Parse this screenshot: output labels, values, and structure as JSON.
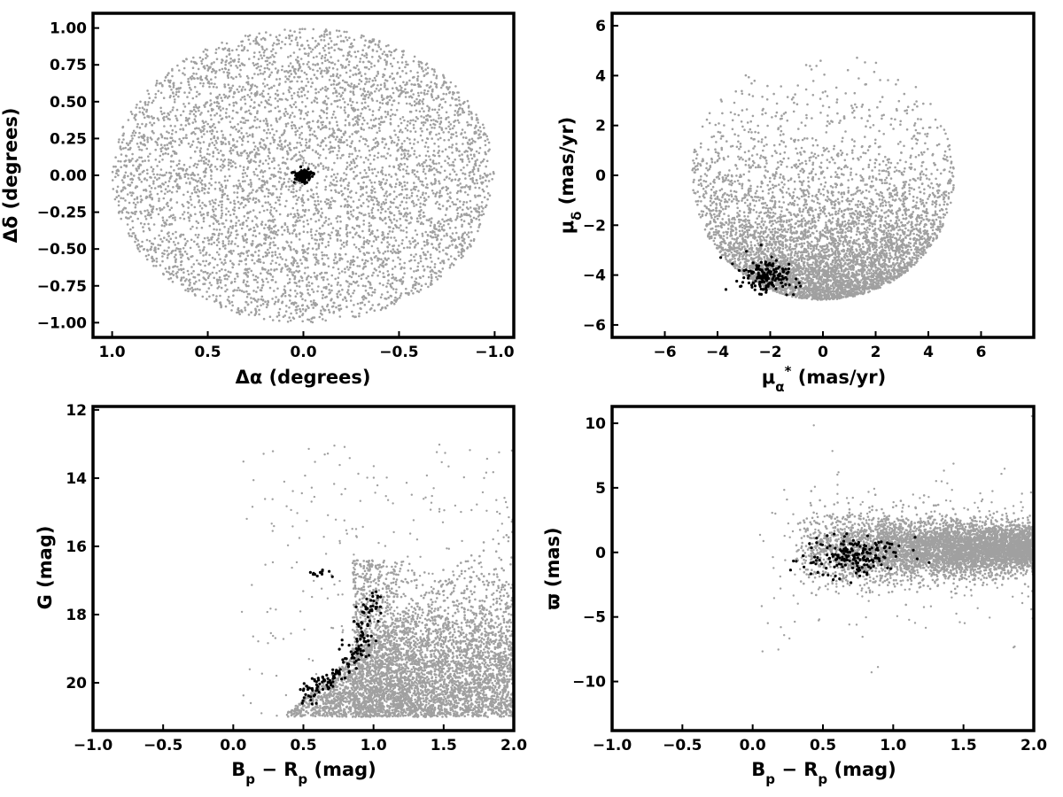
{
  "chart_data": [
    {
      "id": "sky",
      "type": "scatter",
      "xlabel": "Δα (degrees)",
      "ylabel": "Δδ (degrees)",
      "xlim": [
        1.1,
        -1.1
      ],
      "ylim": [
        -1.1,
        1.1
      ],
      "x_reversed": true,
      "xticks": [
        1.0,
        0.5,
        0.0,
        -0.5,
        -1.0
      ],
      "xtick_labels": [
        "1.0",
        "0.5",
        "0.0",
        "−0.5",
        "−1.0"
      ],
      "yticks": [
        1.0,
        0.75,
        0.5,
        0.25,
        0.0,
        -0.25,
        -0.5,
        -0.75,
        -1.0
      ],
      "ytick_labels": [
        "1.00",
        "0.75",
        "0.50",
        "0.25",
        "0.00",
        "−0.25",
        "−0.50",
        "−0.75",
        "−1.00"
      ],
      "series": [
        {
          "role": "field stars",
          "color": "#a0a0a0",
          "distribution": "uniform disk",
          "center": [
            0.0,
            0.0
          ],
          "radius": 1.0
        },
        {
          "role": "members",
          "color": "#000000",
          "distribution": "compact clump",
          "center": [
            0.0,
            0.0
          ],
          "spread": [
            0.02,
            0.02
          ]
        }
      ]
    },
    {
      "id": "proper-motion",
      "type": "scatter",
      "xlabel": "μ*α (mas/yr)",
      "ylabel": "μδ (mas/yr)",
      "xlim": [
        -8,
        8
      ],
      "ylim": [
        -6.5,
        6.5
      ],
      "xticks": [
        -6,
        -4,
        -2,
        0,
        2,
        4,
        6
      ],
      "xtick_labels": [
        "−6",
        "−4",
        "−2",
        "0",
        "2",
        "4",
        "6"
      ],
      "yticks": [
        6,
        4,
        2,
        0,
        -2,
        -4,
        -6
      ],
      "ytick_labels": [
        "6",
        "4",
        "2",
        "0",
        "−2",
        "−4",
        "−6"
      ],
      "series": [
        {
          "role": "field stars",
          "color": "#a0a0a0",
          "distribution": "disk, concentrated near bottom",
          "center": [
            0.0,
            0.0
          ],
          "radius": 5.0,
          "ymin": -5.0
        },
        {
          "role": "members",
          "color": "#000000",
          "distribution": "clump",
          "center": [
            -2.1,
            -4.0
          ],
          "spread": [
            0.55,
            0.35
          ]
        }
      ]
    },
    {
      "id": "cmd",
      "type": "scatter",
      "xlabel": "Bp − Rp (mag)",
      "ylabel": "G (mag)",
      "xlim": [
        -1.0,
        2.0
      ],
      "ylim": [
        21.4,
        11.9
      ],
      "y_reversed": true,
      "xticks": [
        -1.0,
        -0.5,
        0.0,
        0.5,
        1.0,
        1.5,
        2.0
      ],
      "xtick_labels": [
        "−1.0",
        "−0.5",
        "0.0",
        "0.5",
        "1.0",
        "1.5",
        "2.0"
      ],
      "yticks": [
        20,
        18,
        16,
        14,
        12
      ],
      "ytick_labels": [
        "20",
        "18",
        "16",
        "14",
        "12"
      ],
      "series": [
        {
          "role": "field stars",
          "color": "#a0a0a0",
          "distribution": "broad field sequence, faint limit",
          "x_range": [
            0.1,
            2.0
          ],
          "y_range": [
            16.4,
            21.0
          ]
        },
        {
          "role": "members",
          "color": "#000000",
          "distribution": "cluster sequence",
          "sequence": [
            [
              0.5,
              20.4
            ],
            [
              0.65,
              20.0
            ],
            [
              0.8,
              19.6
            ],
            [
              0.9,
              19.0
            ],
            [
              0.95,
              18.3
            ],
            [
              1.0,
              17.5
            ]
          ],
          "red_clump": [
            0.6,
            16.8
          ]
        }
      ]
    },
    {
      "id": "parallax",
      "type": "scatter",
      "xlabel": "Bp − Rp (mag)",
      "ylabel": "ϖ (mas)",
      "xlim": [
        -1.0,
        2.0
      ],
      "ylim": [
        -13.8,
        11.3
      ],
      "xticks": [
        -1.0,
        -0.5,
        0.0,
        0.5,
        1.0,
        1.5,
        2.0
      ],
      "xtick_labels": [
        "−1.0",
        "−0.5",
        "0.0",
        "0.5",
        "1.0",
        "1.5",
        "2.0"
      ],
      "yticks": [
        10,
        5,
        0,
        -5,
        -10
      ],
      "ytick_labels": [
        "10",
        "5",
        "0",
        "−5",
        "−10"
      ],
      "series": [
        {
          "role": "field stars",
          "color": "#a0a0a0",
          "distribution": "horizontal band",
          "x_range": [
            0.1,
            2.0
          ],
          "center_y": 0.3,
          "spread_y": 1.0
        },
        {
          "role": "members",
          "color": "#000000",
          "distribution": "clump",
          "center": [
            0.75,
            -0.3
          ],
          "spread": [
            0.18,
            0.8
          ]
        }
      ]
    }
  ]
}
